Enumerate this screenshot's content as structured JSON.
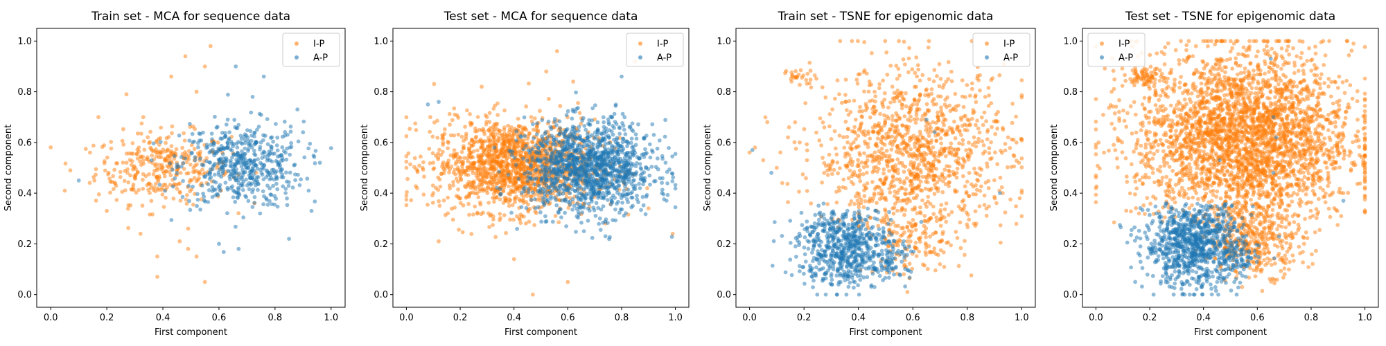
{
  "chart_data": [
    {
      "type": "scatter",
      "title": "Train set - MCA for sequence data",
      "xlabel": "First component",
      "ylabel": "Second component",
      "xlim": [
        -0.05,
        1.05
      ],
      "ylim": [
        -0.05,
        1.05
      ],
      "xticks": [
        "0.0",
        "0.2",
        "0.4",
        "0.6",
        "0.8",
        "1.0"
      ],
      "yticks": [
        "0.0",
        "0.2",
        "0.4",
        "0.6",
        "0.8",
        "1.0"
      ],
      "legend": {
        "placement": "top-right",
        "entries": [
          "I-P",
          "A-P"
        ]
      },
      "series": [
        {
          "name": "I-P",
          "color": "#ff7f0e",
          "clusters": [
            {
              "center": [
                0.4,
                0.5
              ],
              "spread": [
                0.12,
                0.07
              ],
              "count": 340
            }
          ],
          "outliers": [
            [
              0.05,
              0.41
            ],
            [
              0.07,
              0.49
            ],
            [
              0.17,
              0.7
            ],
            [
              0.27,
              0.79
            ],
            [
              0.38,
              0.07
            ],
            [
              0.38,
              0.15
            ],
            [
              0.43,
              0.86
            ],
            [
              0.48,
              0.94
            ],
            [
              0.49,
              0.26
            ],
            [
              0.49,
              0.18
            ],
            [
              0.46,
              0.21
            ],
            [
              0.52,
              0.8
            ],
            [
              0.55,
              0.05
            ],
            [
              0.55,
              0.9
            ],
            [
              0.52,
              0.15
            ],
            [
              0.32,
              0.24
            ],
            [
              0.57,
              0.98
            ],
            [
              0.2,
              0.33
            ],
            [
              0.14,
              0.56
            ],
            [
              0.33,
              0.7
            ]
          ]
        },
        {
          "name": "A-P",
          "color": "#1f77b4",
          "clusters": [
            {
              "center": [
                0.68,
                0.51
              ],
              "spread": [
                0.11,
                0.085
              ],
              "count": 520
            }
          ],
          "outliers": [
            [
              0.1,
              0.45
            ],
            [
              0.66,
              0.9
            ],
            [
              0.76,
              0.86
            ],
            [
              0.92,
              0.41
            ],
            [
              0.96,
              0.52
            ],
            [
              0.93,
              0.33
            ],
            [
              0.85,
              0.22
            ],
            [
              0.67,
              0.18
            ],
            [
              0.6,
              0.2
            ],
            [
              0.88,
              0.73
            ],
            [
              0.9,
              0.64
            ],
            [
              0.72,
              0.78
            ]
          ]
        }
      ]
    },
    {
      "type": "scatter",
      "title": "Test set - MCA for sequence data",
      "xlabel": "First component",
      "ylabel": "Second component",
      "xlim": [
        -0.05,
        1.05
      ],
      "ylim": [
        -0.05,
        1.05
      ],
      "xticks": [
        "0.0",
        "0.2",
        "0.4",
        "0.6",
        "0.8",
        "1.0"
      ],
      "yticks": [
        "0.0",
        "0.2",
        "0.4",
        "0.6",
        "0.8",
        "1.0"
      ],
      "legend": {
        "placement": "top-right",
        "entries": [
          "I-P",
          "A-P"
        ]
      },
      "series": [
        {
          "name": "I-P",
          "color": "#ff7f0e",
          "clusters": [
            {
              "center": [
                0.4,
                0.51
              ],
              "spread": [
                0.15,
                0.09
              ],
              "count": 1500
            }
          ],
          "outliers": [
            [
              0.0,
              0.5
            ],
            [
              0.04,
              0.42
            ],
            [
              0.12,
              0.21
            ],
            [
              0.18,
              0.71
            ],
            [
              0.28,
              0.82
            ],
            [
              0.4,
              0.14
            ],
            [
              0.47,
              0.0
            ],
            [
              0.52,
              0.88
            ],
            [
              0.56,
              0.96
            ],
            [
              0.6,
              0.05
            ],
            [
              0.62,
              0.84
            ],
            [
              0.99,
              0.24
            ],
            [
              0.9,
              0.34
            ],
            [
              0.85,
              0.92
            ]
          ]
        },
        {
          "name": "A-P",
          "color": "#1f77b4",
          "clusters": [
            {
              "center": [
                0.68,
                0.5
              ],
              "spread": [
                0.12,
                0.09
              ],
              "count": 1300
            }
          ],
          "outliers": [
            [
              0.08,
              0.75
            ],
            [
              0.12,
              0.76
            ],
            [
              0.8,
              0.86
            ],
            [
              0.92,
              0.63
            ],
            [
              0.95,
              0.4
            ],
            [
              0.66,
              0.25
            ],
            [
              0.74,
              0.23
            ]
          ]
        }
      ]
    },
    {
      "type": "scatter",
      "title": "Train set - TSNE for epigenomic data",
      "xlabel": "First component",
      "ylabel": "Second component",
      "xlim": [
        -0.05,
        1.05
      ],
      "ylim": [
        -0.05,
        1.05
      ],
      "xticks": [
        "0.0",
        "0.2",
        "0.4",
        "0.6",
        "0.8",
        "1.0"
      ],
      "yticks": [
        "0.0",
        "0.2",
        "0.4",
        "0.6",
        "0.8",
        "1.0"
      ],
      "legend": {
        "placement": "top-right",
        "entries": [
          "I-P",
          "A-P"
        ]
      },
      "series": [
        {
          "name": "I-P",
          "color": "#ff7f0e",
          "clusters": [
            {
              "center": [
                0.6,
                0.55
              ],
              "spread": [
                0.18,
                0.17
              ],
              "count": 1200,
              "ybound": [
                0.26,
                1.0
              ]
            },
            {
              "center": [
                0.6,
                0.2
              ],
              "spread": [
                0.09,
                0.06
              ],
              "count": 140
            },
            {
              "center": [
                0.18,
                0.86
              ],
              "spread": [
                0.03,
                0.015
              ],
              "count": 25
            }
          ],
          "outliers": [
            [
              0.0,
              0.56
            ],
            [
              0.02,
              0.58
            ],
            [
              0.05,
              0.53
            ],
            [
              0.12,
              0.44
            ],
            [
              0.1,
              0.5
            ],
            [
              0.95,
              0.62
            ],
            [
              0.99,
              0.52
            ],
            [
              0.97,
              0.55
            ],
            [
              0.93,
              0.4
            ],
            [
              0.58,
              0.01
            ]
          ]
        },
        {
          "name": "A-P",
          "color": "#1f77b4",
          "clusters": [
            {
              "center": [
                0.35,
                0.19
              ],
              "spread": [
                0.085,
                0.08
              ],
              "count": 650,
              "ybound": [
                0.0,
                0.36
              ]
            },
            {
              "center": [
                0.52,
                0.13
              ],
              "spread": [
                0.035,
                0.035
              ],
              "count": 60
            }
          ],
          "outliers": [
            [
              0.08,
              0.48
            ],
            [
              0.01,
              0.57
            ],
            [
              0.92,
              0.4
            ],
            [
              0.65,
              0.69
            ],
            [
              0.68,
              0.64
            ]
          ]
        }
      ]
    },
    {
      "type": "scatter",
      "title": "Test set - TSNE for epigenomic data",
      "xlabel": "First component",
      "ylabel": "Second component",
      "xlim": [
        -0.05,
        1.05
      ],
      "ylim": [
        -0.05,
        1.05
      ],
      "xticks": [
        "0.0",
        "0.2",
        "0.4",
        "0.6",
        "0.8",
        "1.0"
      ],
      "yticks": [
        "0.0",
        "0.2",
        "0.4",
        "0.6",
        "0.8",
        "1.0"
      ],
      "legend": {
        "placement": "top-left",
        "entries": [
          "I-P",
          "A-P"
        ]
      },
      "series": [
        {
          "name": "I-P",
          "color": "#ff7f0e",
          "clusters": [
            {
              "center": [
                0.55,
                0.62
              ],
              "spread": [
                0.2,
                0.17
              ],
              "count": 3000,
              "ybound": [
                0.27,
                1.0
              ]
            },
            {
              "center": [
                0.6,
                0.22
              ],
              "spread": [
                0.09,
                0.07
              ],
              "count": 400
            },
            {
              "center": [
                0.18,
                0.86
              ],
              "spread": [
                0.03,
                0.02
              ],
              "count": 60
            }
          ],
          "outliers": [
            [
              0.0,
              0.58
            ],
            [
              0.01,
              0.6
            ],
            [
              0.03,
              0.56
            ],
            [
              0.98,
              0.55
            ],
            [
              1.0,
              0.5
            ],
            [
              0.92,
              0.4
            ]
          ]
        },
        {
          "name": "A-P",
          "color": "#1f77b4",
          "clusters": [
            {
              "center": [
                0.36,
                0.2
              ],
              "spread": [
                0.09,
                0.085
              ],
              "count": 900,
              "ybound": [
                0.0,
                0.36
              ]
            },
            {
              "center": [
                0.52,
                0.14
              ],
              "spread": [
                0.04,
                0.04
              ],
              "count": 80
            }
          ],
          "outliers": [
            [
              0.65,
              0.93
            ],
            [
              0.66,
              0.7
            ],
            [
              0.67,
              0.62
            ],
            [
              0.66,
              0.48
            ],
            [
              0.92,
              0.37
            ],
            [
              0.46,
              0.53
            ]
          ]
        }
      ]
    }
  ]
}
